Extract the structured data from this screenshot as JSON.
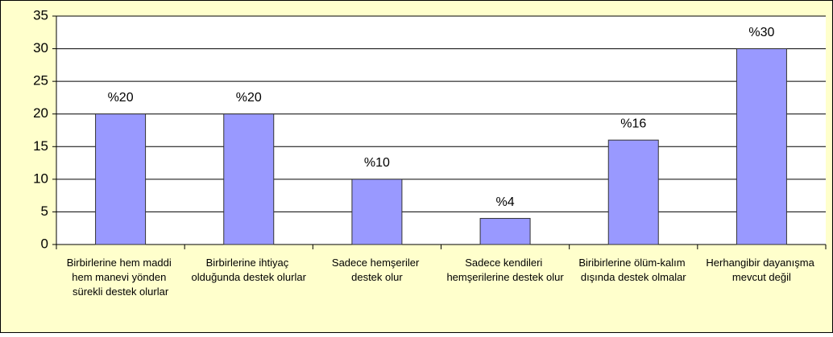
{
  "chart_data": {
    "type": "bar",
    "categories": [
      "Birbirlerine hem maddi hem manevi yönden sürekli destek olurlar",
      "Birbirlerine ihtiyaç olduğunda destek olurlar",
      "Sadece hemşeriler destek olur",
      "Sadece kendileri hemşerilerine destek olur",
      "Biribirlerine ölüm-kalım dışında destek olmalar",
      "Herhangibir dayanışma mevcut değil"
    ],
    "values": [
      20,
      20,
      10,
      4,
      16,
      30
    ],
    "value_labels": [
      "%20",
      "%20",
      "%10",
      "%4",
      "%16",
      "%30"
    ],
    "color": "#9999ff",
    "ylim": [
      0,
      35
    ],
    "yticks": [
      0,
      5,
      10,
      15,
      20,
      25,
      30,
      35
    ],
    "grid": true
  }
}
